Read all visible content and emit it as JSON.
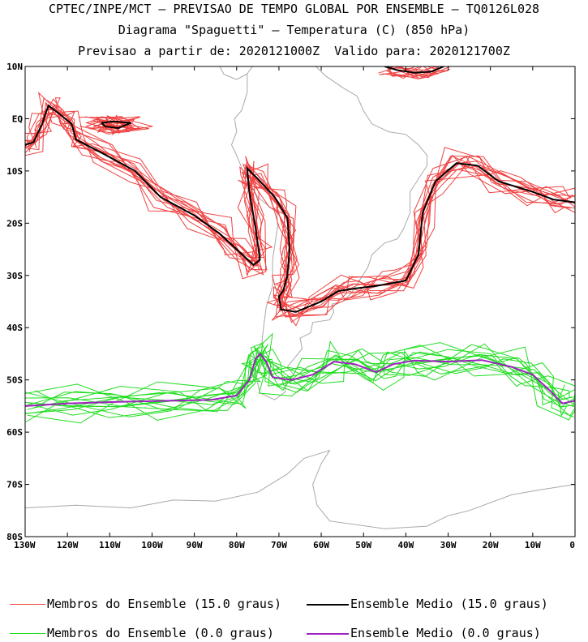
{
  "header": {
    "line1": "CPTEC/INPE/MCT – PREVISAO DE TEMPO GLOBAL POR ENSEMBLE – TQ0126L028",
    "line2": "Diagrama \"Spaguetti\" – Temperatura (C) (850 hPa)",
    "line3": "Previsao a partir de: 2020121000Z  Valido para: 2020121700Z"
  },
  "axes": {
    "lat_ticks": [
      "10N",
      "EQ",
      "10S",
      "20S",
      "30S",
      "40S",
      "50S",
      "60S",
      "70S",
      "80S"
    ],
    "lon_ticks": [
      "130W",
      "120W",
      "110W",
      "100W",
      "90W",
      "80W",
      "70W",
      "60W",
      "50W",
      "40W",
      "30W",
      "20W",
      "10W",
      "0"
    ]
  },
  "legend": {
    "members_15": "Membros do Ensemble (15.0 graus)",
    "mean_15": "Ensemble Medio (15.0 graus)",
    "members_0": "Membros do Ensemble (0.0 graus)",
    "mean_0": "Ensemble Medio (0.0 graus)"
  },
  "colors": {
    "members_15": "#f04040",
    "mean_15": "#000000",
    "members_0": "#20dd20",
    "mean_0": "#a020c0",
    "land": "#a8a8a8"
  },
  "map_data": {
    "extent": {
      "lon": [
        -130,
        0
      ],
      "lat": [
        -80,
        10
      ]
    },
    "mean_15": [
      [
        -130,
        -5
      ],
      [
        -128,
        -4.5
      ],
      [
        -126,
        -1
      ],
      [
        -124.5,
        2.5
      ],
      [
        -122,
        1
      ],
      [
        -119,
        -1
      ],
      [
        -118,
        -4
      ],
      [
        -112,
        -6.5
      ],
      [
        -104,
        -10
      ],
      [
        -98,
        -15
      ],
      [
        -90,
        -18.5
      ],
      [
        -84,
        -22
      ],
      [
        -80,
        -25
      ],
      [
        -76,
        -28
      ],
      [
        -74.5,
        -27
      ],
      [
        -75.5,
        -21
      ],
      [
        -77,
        -14
      ],
      [
        -77.5,
        -9.5
      ],
      [
        -75,
        -11.5
      ],
      [
        -71,
        -15
      ],
      [
        -68,
        -19
      ],
      [
        -67.5,
        -25
      ],
      [
        -68,
        -30
      ],
      [
        -69,
        -33
      ],
      [
        -70,
        -34
      ],
      [
        -69.5,
        -36.5
      ],
      [
        -66,
        -37
      ],
      [
        -60,
        -35
      ],
      [
        -56,
        -33
      ],
      [
        -52,
        -32.5
      ],
      [
        -47,
        -32
      ],
      [
        -40,
        -31
      ],
      [
        -37,
        -26
      ],
      [
        -36,
        -18
      ],
      [
        -33,
        -12
      ],
      [
        -28,
        -8.5
      ],
      [
        -23,
        -9
      ],
      [
        -18,
        -12
      ],
      [
        -10,
        -14
      ],
      [
        -5,
        -15.5
      ],
      [
        0,
        -16
      ]
    ],
    "mean_15_loop": [
      [
        -112,
        -0.8
      ],
      [
        -109,
        -0.5
      ],
      [
        -105,
        -0.8
      ],
      [
        -108,
        -1.8
      ],
      [
        -111,
        -1.5
      ],
      [
        -112,
        -0.8
      ]
    ],
    "mean_15_top": [
      [
        -45,
        10
      ],
      [
        -42,
        9.3
      ],
      [
        -38,
        8.8
      ],
      [
        -34,
        9
      ],
      [
        -31,
        10
      ]
    ],
    "mean_0": [
      [
        -130,
        -55
      ],
      [
        -120,
        -54.5
      ],
      [
        -108,
        -54.2
      ],
      [
        -96,
        -54
      ],
      [
        -86,
        -53.8
      ],
      [
        -80,
        -53
      ],
      [
        -77,
        -50
      ],
      [
        -75.5,
        -46
      ],
      [
        -74.5,
        -45
      ],
      [
        -73,
        -46.5
      ],
      [
        -71.5,
        -49.5
      ],
      [
        -67,
        -50
      ],
      [
        -62,
        -49
      ],
      [
        -57,
        -46.5
      ],
      [
        -52,
        -47
      ],
      [
        -47,
        -48.5
      ],
      [
        -43,
        -47
      ],
      [
        -38,
        -46.3
      ],
      [
        -30,
        -46.5
      ],
      [
        -22,
        -46.2
      ],
      [
        -15,
        -47.5
      ],
      [
        -10,
        -49
      ],
      [
        -6,
        -52
      ],
      [
        -3,
        -54.5
      ],
      [
        0,
        -54
      ]
    ],
    "south_america": [
      [
        -77.5,
        8.6
      ],
      [
        -75.5,
        10.8
      ],
      [
        -71.5,
        12.2
      ],
      [
        -67,
        10.6
      ],
      [
        -62,
        10.6
      ],
      [
        -59,
        8.2
      ],
      [
        -55,
        6
      ],
      [
        -51.5,
        4.3
      ],
      [
        -50,
        1.5
      ],
      [
        -48,
        -1
      ],
      [
        -44,
        -2.5
      ],
      [
        -40,
        -3
      ],
      [
        -37,
        -5
      ],
      [
        -35,
        -7
      ],
      [
        -35,
        -9
      ],
      [
        -37,
        -11.5
      ],
      [
        -39,
        -14
      ],
      [
        -39,
        -18
      ],
      [
        -40.5,
        -21
      ],
      [
        -42,
        -23
      ],
      [
        -45,
        -23.8
      ],
      [
        -48,
        -26
      ],
      [
        -49,
        -28.5
      ],
      [
        -51,
        -31
      ],
      [
        -53,
        -33.5
      ],
      [
        -55,
        -35
      ],
      [
        -57.5,
        -35.5
      ],
      [
        -57,
        -37
      ],
      [
        -58,
        -38.5
      ],
      [
        -62,
        -39
      ],
      [
        -62.5,
        -41
      ],
      [
        -65,
        -42
      ],
      [
        -64.5,
        -44
      ],
      [
        -66.5,
        -46
      ],
      [
        -68,
        -47.5
      ],
      [
        -66.5,
        -49
      ],
      [
        -68.5,
        -50.5
      ],
      [
        -68.5,
        -52.3
      ],
      [
        -71,
        -53.8
      ],
      [
        -74.5,
        -52.5
      ],
      [
        -75.5,
        -49
      ],
      [
        -74,
        -46
      ],
      [
        -74,
        -42.5
      ],
      [
        -73.5,
        -39
      ],
      [
        -73,
        -36
      ],
      [
        -71.5,
        -32
      ],
      [
        -71.5,
        -27
      ],
      [
        -70.3,
        -20.5
      ],
      [
        -70.5,
        -18
      ],
      [
        -75,
        -15
      ],
      [
        -76.5,
        -13
      ],
      [
        -78.5,
        -10
      ],
      [
        -80,
        -7
      ],
      [
        -81.2,
        -5
      ],
      [
        -80,
        -2.5
      ],
      [
        -80.5,
        0
      ],
      [
        -78.8,
        1.6
      ],
      [
        -77.5,
        5
      ],
      [
        -77.5,
        8.6
      ]
    ],
    "central_america": [
      [
        -77.5,
        8.6
      ],
      [
        -80,
        7.5
      ],
      [
        -83,
        8.5
      ],
      [
        -84,
        10
      ],
      [
        -86,
        12
      ],
      [
        -88,
        13.5
      ],
      [
        -92,
        14.5
      ],
      [
        -94,
        16
      ]
    ],
    "antarctica": [
      [
        -130,
        -74.5
      ],
      [
        -118,
        -74
      ],
      [
        -105,
        -74.5
      ],
      [
        -95,
        -73
      ],
      [
        -85,
        -73.2
      ],
      [
        -75,
        -71.5
      ],
      [
        -68,
        -68
      ],
      [
        -64,
        -65
      ],
      [
        -58,
        -63.5
      ],
      [
        -60,
        -66
      ],
      [
        -62,
        -70
      ],
      [
        -61,
        -74
      ],
      [
        -58,
        -77
      ],
      [
        -45,
        -78.5
      ],
      [
        -35,
        -78
      ],
      [
        -30,
        -76
      ],
      [
        -25,
        -75
      ],
      [
        -15,
        -72
      ],
      [
        -8,
        -71
      ],
      [
        0,
        -70
      ]
    ]
  }
}
